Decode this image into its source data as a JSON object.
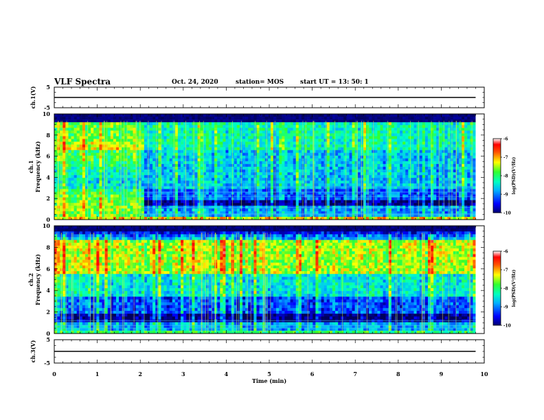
{
  "header": {
    "title": "VLF Spectra",
    "date": "Oct. 24, 2020",
    "station": "station= MOS",
    "start": "start UT =  13: 50: 1"
  },
  "chart_data": [
    {
      "type": "line",
      "panel": "ch1-waveform",
      "ylabel": "ch.1(V)",
      "ylim": [
        -5,
        5
      ],
      "yticks": [
        "5",
        "-5"
      ],
      "xlim": [
        0,
        10
      ],
      "series": [
        {
          "x": [
            0,
            9.8
          ],
          "y": [
            0,
            0
          ],
          "color": "#000000"
        }
      ]
    },
    {
      "type": "heatmap",
      "panel": "ch1-spectrogram",
      "ylabel": "ch.1",
      "ylabel2": "Frequency (kHz)",
      "ylim": [
        0,
        10
      ],
      "yticks": [
        "0",
        "2",
        "4",
        "6",
        "8",
        "10"
      ],
      "xlim": [
        0,
        10
      ],
      "data_xmax": 9.8,
      "colorbar": {
        "label": "log(PSD)(V²/Hz)",
        "range": [
          -10,
          -6
        ],
        "ticks": [
          "-6",
          "-7",
          "-8",
          "-9",
          "-10"
        ]
      }
    },
    {
      "type": "heatmap",
      "panel": "ch2-spectrogram",
      "ylabel": "ch.2",
      "ylabel2": "Frequency (kHz)",
      "ylim": [
        0,
        10
      ],
      "yticks": [
        "0",
        "2",
        "4",
        "6",
        "8",
        "10"
      ],
      "xlim": [
        0,
        10
      ],
      "data_xmax": 9.8,
      "colorbar": {
        "label": "log(PSD)(V²/Hz)",
        "range": [
          -10,
          -6
        ],
        "ticks": [
          "-6",
          "-7",
          "-8",
          "-9",
          "-10"
        ]
      }
    },
    {
      "type": "line",
      "panel": "ch3-waveform",
      "ylabel": "ch.3(V)",
      "ylim": [
        -5,
        5
      ],
      "yticks": [
        "5",
        "-5"
      ],
      "xlim": [
        0,
        10
      ],
      "xlabel": "Time (min)",
      "xticks": [
        "0",
        "1",
        "2",
        "3",
        "4",
        "5",
        "6",
        "7",
        "8",
        "9",
        "10"
      ],
      "series": [
        {
          "x": [
            0,
            9.8
          ],
          "y": [
            0,
            0
          ],
          "color": "#000000"
        }
      ]
    }
  ]
}
